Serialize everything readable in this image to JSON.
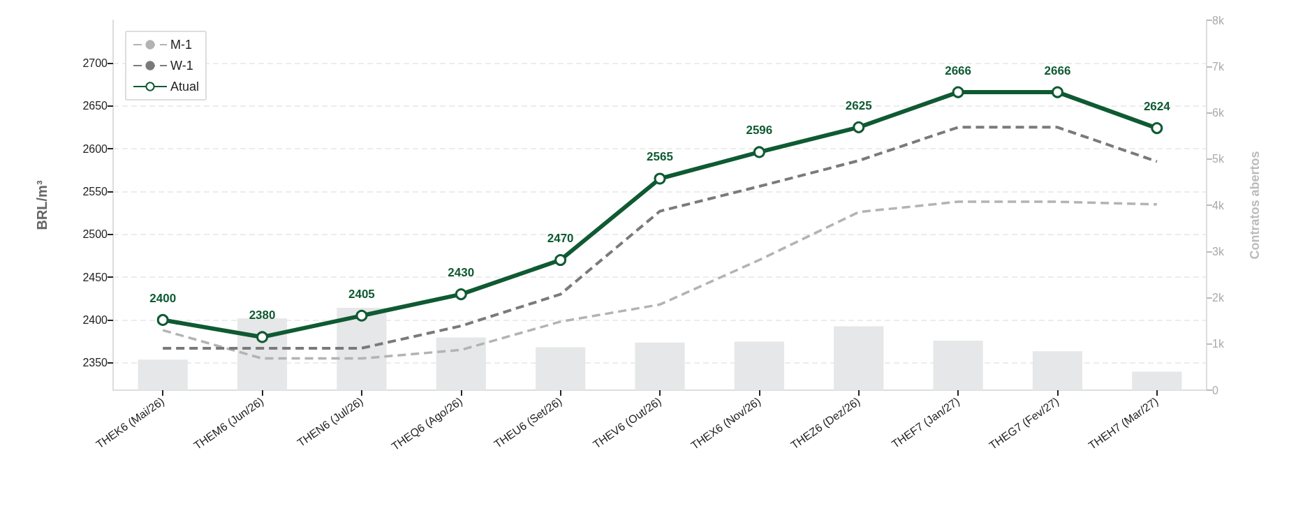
{
  "chart_data": {
    "type": "line",
    "ylabel": "BRL/m³",
    "y2label": "Contratos abertos",
    "categories": [
      "THEK6 (Mai/26)",
      "THEM6 (Jun/26)",
      "THEN6 (Jul/26)",
      "THEQ6 (Ago/26)",
      "THEU6 (Set/26)",
      "THEV6 (Out/26)",
      "THEX6 (Nov/26)",
      "THEZ6 (Dez/26)",
      "THEF7 (Jan/27)",
      "THEG7 (Fev/27)",
      "THEH7 (Mar/27)"
    ],
    "series": [
      {
        "type": "bar",
        "axis": "y2",
        "color": "#e5e7e8",
        "values": [
          660,
          1550,
          1780,
          1140,
          930,
          1030,
          1050,
          1380,
          1070,
          840,
          400
        ]
      },
      {
        "name": "M-1",
        "color": "#b3b3b3",
        "line_style": "dashed",
        "marker": "none",
        "values": [
          2388,
          2355,
          2355,
          2365,
          2398,
          2418,
          2470,
          2526,
          2538,
          2538,
          2535
        ]
      },
      {
        "name": "W-1",
        "color": "#7a7a7a",
        "line_style": "dashed",
        "marker": "none",
        "values": [
          2367,
          2367,
          2367,
          2393,
          2430,
          2527,
          2556,
          2586,
          2625,
          2625,
          2585
        ]
      },
      {
        "name": "Atual",
        "color": "#0f5a32",
        "line_style": "solid",
        "marker": "circle",
        "values": [
          2400,
          2380,
          2405,
          2430,
          2470,
          2565,
          2596,
          2625,
          2666,
          2666,
          2624
        ],
        "value_labels": [
          "2400",
          "2380",
          "2405",
          "2430",
          "2470",
          "2565",
          "2596",
          "2625",
          "2666",
          "2666",
          "2624"
        ]
      }
    ],
    "ylim": [
      2318,
      2750
    ],
    "yticks": [
      2350,
      2400,
      2450,
      2500,
      2550,
      2600,
      2650,
      2700
    ],
    "y2lim": [
      0,
      8000
    ],
    "y2ticks": [
      0,
      {
        "value": 1000,
        "label": "1k"
      },
      {
        "value": 2000,
        "label": "2k"
      },
      {
        "value": 3000,
        "label": "3k"
      },
      {
        "value": 4000,
        "label": "4k"
      },
      {
        "value": 5000,
        "label": "5k"
      },
      {
        "value": 6000,
        "label": "6k"
      },
      {
        "value": 7000,
        "label": "7k"
      },
      {
        "value": 8000,
        "label": "8k"
      }
    ],
    "grid": "y",
    "legend": "top left"
  }
}
